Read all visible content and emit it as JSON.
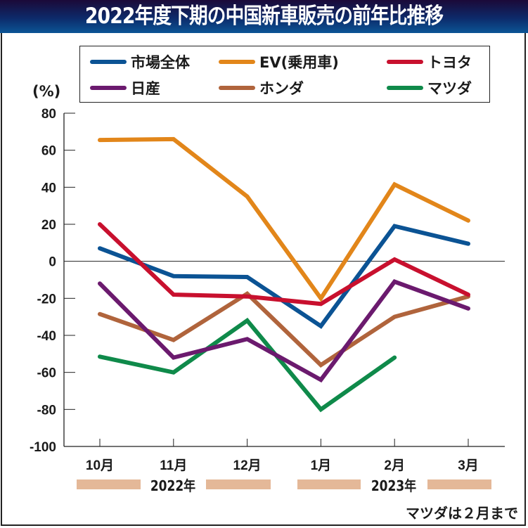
{
  "title": "2022年度下期の中国新車販売の前年比推移",
  "note": "マツダは２月まで",
  "chart_data": {
    "type": "line",
    "title": "2022年度下期の中国新車販売の前年比推移",
    "xlabel": "",
    "ylabel": "(%)",
    "categories": [
      "10月",
      "11月",
      "12月",
      "1月",
      "2月",
      "3月"
    ],
    "year_groups": [
      {
        "label": "2022年",
        "months": [
          "10月",
          "11月",
          "12月"
        ]
      },
      {
        "label": "2023年",
        "months": [
          "1月",
          "2月",
          "3月"
        ]
      }
    ],
    "ylim": [
      -100,
      80
    ],
    "yticks": [
      80,
      60,
      40,
      20,
      0,
      -20,
      -40,
      -60,
      -80,
      -100
    ],
    "ytick_labels": [
      "80",
      "60",
      "40",
      "20",
      "0",
      "-20",
      "-40",
      "-60",
      "-80",
      "-100"
    ],
    "grid": false,
    "zero_line": true,
    "legend_position": "top",
    "series": [
      {
        "name": "市場全体",
        "color": "#0b5394",
        "values": [
          7,
          -8,
          -8.5,
          -35,
          19,
          9.5
        ]
      },
      {
        "name": "EV(乗用車)",
        "color": "#e2861a",
        "values": [
          65.5,
          66,
          35,
          -20,
          41.5,
          22
        ]
      },
      {
        "name": "トヨタ",
        "color": "#c8102e",
        "values": [
          20,
          -18,
          -19,
          -23,
          1,
          -18
        ]
      },
      {
        "name": "日産",
        "color": "#6b1a6e",
        "values": [
          -12,
          -52,
          -42,
          -64,
          -11,
          -25.5
        ]
      },
      {
        "name": "ホンダ",
        "color": "#b0643c",
        "values": [
          -28.5,
          -42.5,
          -17.5,
          -56,
          -30,
          -19
        ]
      },
      {
        "name": "マツダ",
        "color": "#0f8a4a",
        "values": [
          -51.5,
          -60,
          -32,
          -80,
          -52,
          null
        ]
      }
    ]
  }
}
